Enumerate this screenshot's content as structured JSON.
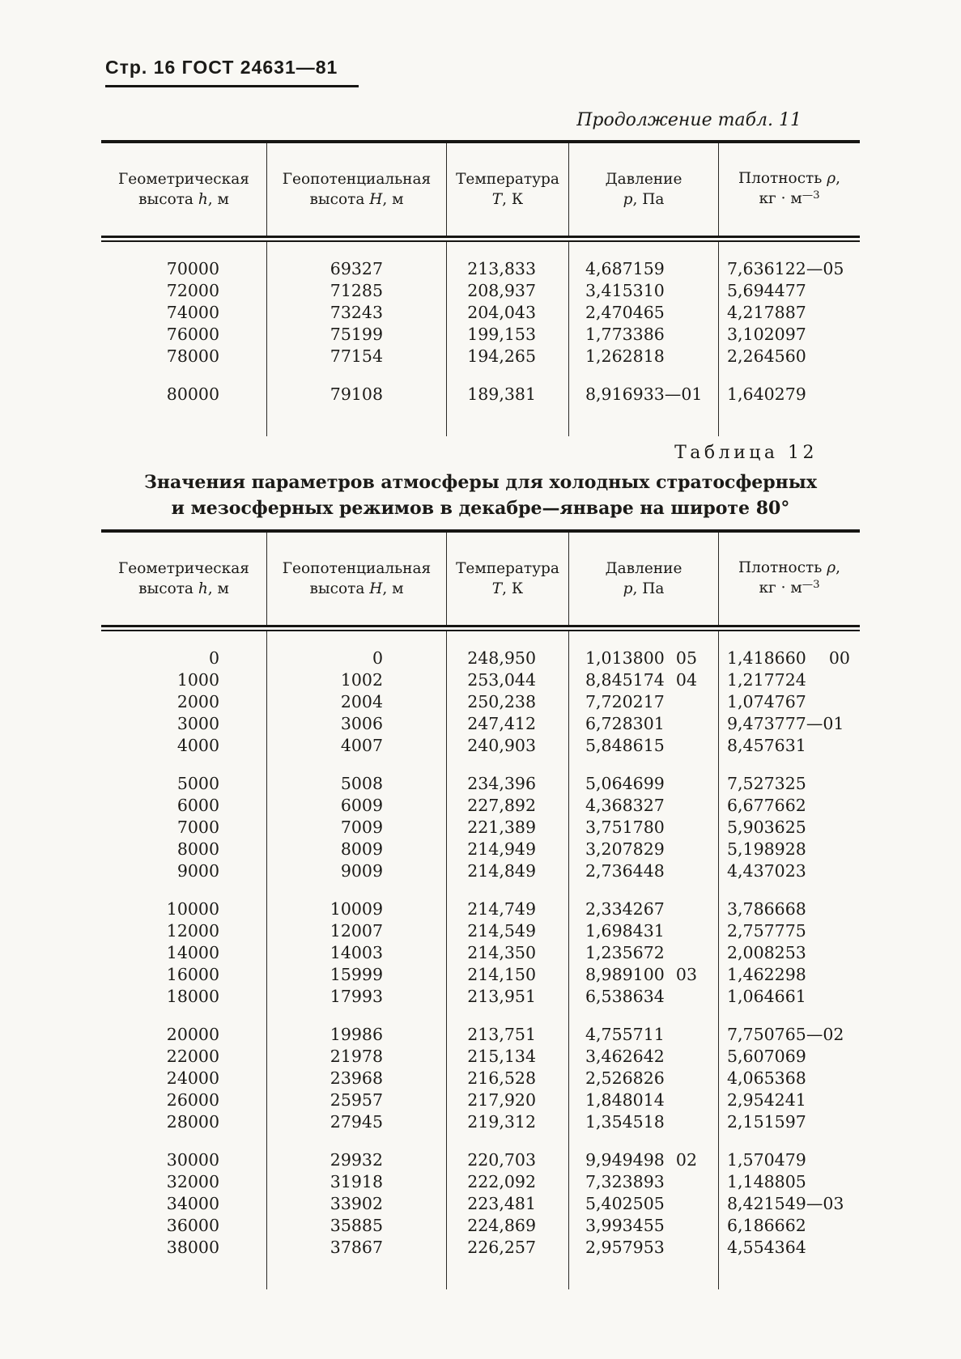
{
  "page": {
    "header": "Стр. 16 ГОСТ 24631—81"
  },
  "colors": {
    "paper": "#f9f8f4",
    "ink": "#1b1a17"
  },
  "tables": [
    {
      "caption": "Продолжение табл. 11",
      "headers": [
        [
          "Геометрическая",
          "высота |h|, м"
        ],
        [
          "Геопотенциальная",
          "высота |H|, м"
        ],
        [
          "Температура",
          "|T|, К"
        ],
        [
          "Давление",
          "|p|, Па"
        ],
        [
          "Плотность |ρ|,",
          "кг · м{—3}"
        ]
      ],
      "blocks": [
        [
          {
            "h": "70000",
            "H": "69327",
            "T": "213,833",
            "p": "4,687159",
            "pe": "",
            "d": "7,636122—05",
            "de": ""
          },
          {
            "h": "72000",
            "H": "71285",
            "T": "208,937",
            "p": "3,415310",
            "pe": "",
            "d": "5,694477",
            "de": ""
          },
          {
            "h": "74000",
            "H": "73243",
            "T": "204,043",
            "p": "2,470465",
            "pe": "",
            "d": "4,217887",
            "de": ""
          },
          {
            "h": "76000",
            "H": "75199",
            "T": "199,153",
            "p": "1,773386",
            "pe": "",
            "d": "3,102097",
            "de": ""
          },
          {
            "h": "78000",
            "H": "77154",
            "T": "194,265",
            "p": "1,262818",
            "pe": "",
            "d": "2,264560",
            "de": ""
          }
        ],
        [
          {
            "h": "80000",
            "H": "79108",
            "T": "189,381",
            "p": "8,916933—01",
            "pe": "",
            "d": "1,640279",
            "de": ""
          }
        ]
      ]
    },
    {
      "caption": "Таблица 12",
      "title_lines": [
        "Значения параметров атмосферы для холодных стратосферных",
        "и мезосферных режимов в декабре—январе на широте 80°"
      ],
      "headers": [
        [
          "Геометрическая",
          "высота |h|, м"
        ],
        [
          "Геопотенциальная",
          "высота |H|, м"
        ],
        [
          "Температура",
          "|T|, К"
        ],
        [
          "Давление",
          "|p|, Па"
        ],
        [
          "Плотность |ρ|,",
          "кг · м{—3}"
        ]
      ],
      "blocks": [
        [
          {
            "h": "0",
            "H": "0",
            "T": "248,950",
            "p": "1,013800",
            "pe": "05",
            "d": "1,418660",
            "de": "00"
          },
          {
            "h": "1000",
            "H": "1002",
            "T": "253,044",
            "p": "8,845174",
            "pe": "04",
            "d": "1,217724",
            "de": ""
          },
          {
            "h": "2000",
            "H": "2004",
            "T": "250,238",
            "p": "7,720217",
            "pe": "",
            "d": "1,074767",
            "de": ""
          },
          {
            "h": "3000",
            "H": "3006",
            "T": "247,412",
            "p": "6,728301",
            "pe": "",
            "d": "9,473777—01",
            "de": ""
          },
          {
            "h": "4000",
            "H": "4007",
            "T": "240,903",
            "p": "5,848615",
            "pe": "",
            "d": "8,457631",
            "de": ""
          }
        ],
        [
          {
            "h": "5000",
            "H": "5008",
            "T": "234,396",
            "p": "5,064699",
            "pe": "",
            "d": "7,527325",
            "de": ""
          },
          {
            "h": "6000",
            "H": "6009",
            "T": "227,892",
            "p": "4,368327",
            "pe": "",
            "d": "6,677662",
            "de": ""
          },
          {
            "h": "7000",
            "H": "7009",
            "T": "221,389",
            "p": "3,751780",
            "pe": "",
            "d": "5,903625",
            "de": ""
          },
          {
            "h": "8000",
            "H": "8009",
            "T": "214,949",
            "p": "3,207829",
            "pe": "",
            "d": "5,198928",
            "de": ""
          },
          {
            "h": "9000",
            "H": "9009",
            "T": "214,849",
            "p": "2,736448",
            "pe": "",
            "d": "4,437023",
            "de": ""
          }
        ],
        [
          {
            "h": "10000",
            "H": "10009",
            "T": "214,749",
            "p": "2,334267",
            "pe": "",
            "d": "3,786668",
            "de": ""
          },
          {
            "h": "12000",
            "H": "12007",
            "T": "214,549",
            "p": "1,698431",
            "pe": "",
            "d": "2,757775",
            "de": ""
          },
          {
            "h": "14000",
            "H": "14003",
            "T": "214,350",
            "p": "1,235672",
            "pe": "",
            "d": "2,008253",
            "de": ""
          },
          {
            "h": "16000",
            "H": "15999",
            "T": "214,150",
            "p": "8,989100",
            "pe": "03",
            "d": "1,462298",
            "de": ""
          },
          {
            "h": "18000",
            "H": "17993",
            "T": "213,951",
            "p": "6,538634",
            "pe": "",
            "d": "1,064661",
            "de": ""
          }
        ],
        [
          {
            "h": "20000",
            "H": "19986",
            "T": "213,751",
            "p": "4,755711",
            "pe": "",
            "d": "7,750765—02",
            "de": ""
          },
          {
            "h": "22000",
            "H": "21978",
            "T": "215,134",
            "p": "3,462642",
            "pe": "",
            "d": "5,607069",
            "de": ""
          },
          {
            "h": "24000",
            "H": "23968",
            "T": "216,528",
            "p": "2,526826",
            "pe": "",
            "d": "4,065368",
            "de": ""
          },
          {
            "h": "26000",
            "H": "25957",
            "T": "217,920",
            "p": "1,848014",
            "pe": "",
            "d": "2,954241",
            "de": ""
          },
          {
            "h": "28000",
            "H": "27945",
            "T": "219,312",
            "p": "1,354518",
            "pe": "",
            "d": "2,151597",
            "de": ""
          }
        ],
        [
          {
            "h": "30000",
            "H": "29932",
            "T": "220,703",
            "p": "9,949498",
            "pe": "02",
            "d": "1,570479",
            "de": ""
          },
          {
            "h": "32000",
            "H": "31918",
            "T": "222,092",
            "p": "7,323893",
            "pe": "",
            "d": "1,148805",
            "de": ""
          },
          {
            "h": "34000",
            "H": "33902",
            "T": "223,481",
            "p": "5,402505",
            "pe": "",
            "d": "8,421549—03",
            "de": ""
          },
          {
            "h": "36000",
            "H": "35885",
            "T": "224,869",
            "p": "3,993455",
            "pe": "",
            "d": "6,186662",
            "de": ""
          },
          {
            "h": "38000",
            "H": "37867",
            "T": "226,257",
            "p": "2,957953",
            "pe": "",
            "d": "4,554364",
            "de": ""
          }
        ]
      ]
    }
  ]
}
